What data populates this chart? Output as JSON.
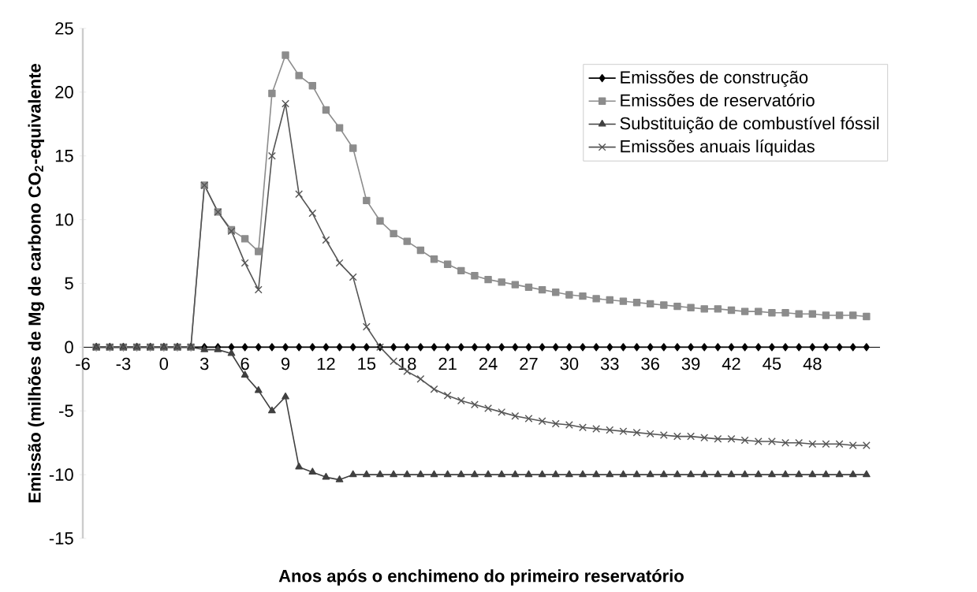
{
  "chart_data": {
    "type": "line",
    "xlabel": "Anos após o enchimeno do primeiro reservatório",
    "ylabel": "Emissão (milhões de Mg de carbono CO$_{2}$-equivalente",
    "x": [
      -5,
      -4,
      -3,
      -2,
      -1,
      0,
      1,
      2,
      3,
      4,
      5,
      6,
      7,
      8,
      9,
      10,
      11,
      12,
      13,
      14,
      15,
      16,
      17,
      18,
      19,
      20,
      21,
      22,
      23,
      24,
      25,
      26,
      27,
      28,
      29,
      30,
      31,
      32,
      33,
      34,
      35,
      36,
      37,
      38,
      39,
      40,
      41,
      42,
      43,
      44,
      45,
      46,
      47,
      48,
      49,
      50,
      51,
      52
    ],
    "xlim": [
      -6,
      53
    ],
    "xticks": [
      -6,
      -3,
      0,
      3,
      6,
      9,
      12,
      15,
      18,
      21,
      24,
      27,
      30,
      33,
      36,
      39,
      42,
      45,
      48
    ],
    "ylim": [
      -15,
      25
    ],
    "yticks": [
      -15,
      -10,
      -5,
      0,
      5,
      10,
      15,
      20,
      25
    ],
    "legend": "top right",
    "grid": false,
    "series": [
      {
        "name": "Emissões de construção",
        "color": "#000000",
        "marker": "diamond",
        "values": [
          0,
          0,
          0,
          0,
          0,
          0,
          0,
          0,
          0,
          0,
          0,
          0,
          0,
          0,
          0,
          0,
          0,
          0,
          0,
          0,
          0,
          0,
          0,
          0,
          0,
          0,
          0,
          0,
          0,
          0,
          0,
          0,
          0,
          0,
          0,
          0,
          0,
          0,
          0,
          0,
          0,
          0,
          0,
          0,
          0,
          0,
          0,
          0,
          0,
          0,
          0,
          0,
          0,
          0,
          0,
          0,
          0,
          0
        ]
      },
      {
        "name": "Emissões de reservatório",
        "color": "#8c8c8c",
        "marker": "square",
        "values": [
          0,
          0,
          0,
          0,
          0,
          0,
          0,
          0,
          12.7,
          10.6,
          9.2,
          8.5,
          7.5,
          19.9,
          22.9,
          21.3,
          20.5,
          18.6,
          17.2,
          15.6,
          11.5,
          9.9,
          8.9,
          8.3,
          7.6,
          6.9,
          6.5,
          6.0,
          5.6,
          5.3,
          5.1,
          4.9,
          4.7,
          4.5,
          4.3,
          4.1,
          4.0,
          3.8,
          3.7,
          3.6,
          3.5,
          3.4,
          3.3,
          3.2,
          3.1,
          3.0,
          3.0,
          2.9,
          2.8,
          2.8,
          2.7,
          2.7,
          2.6,
          2.6,
          2.5,
          2.5,
          2.5,
          2.4
        ]
      },
      {
        "name": "Substituição de combustível fóssil",
        "color": "#404040",
        "marker": "triangle",
        "values": [
          0,
          0,
          0,
          0,
          0,
          0,
          0,
          0,
          -0.2,
          -0.2,
          -0.5,
          -2.2,
          -3.4,
          -5.0,
          -3.9,
          -9.4,
          -9.8,
          -10.2,
          -10.4,
          -10,
          -10,
          -10,
          -10,
          -10,
          -10,
          -10,
          -10,
          -10,
          -10,
          -10,
          -10,
          -10,
          -10,
          -10,
          -10,
          -10,
          -10,
          -10,
          -10,
          -10,
          -10,
          -10,
          -10,
          -10,
          -10,
          -10,
          -10,
          -10,
          -10,
          -10,
          -10,
          -10,
          -10,
          -10,
          -10,
          -10,
          -10,
          -10
        ]
      },
      {
        "name": "Emissões anuais líquidas",
        "color": "#555555",
        "marker": "cross",
        "values": [
          0,
          0,
          0,
          0,
          0,
          0,
          0,
          0,
          12.7,
          10.6,
          9.1,
          6.6,
          4.5,
          15.0,
          19.1,
          12.0,
          10.5,
          8.4,
          6.6,
          5.5,
          1.6,
          0.0,
          -1.1,
          -1.9,
          -2.5,
          -3.3,
          -3.8,
          -4.2,
          -4.5,
          -4.8,
          -5.1,
          -5.4,
          -5.6,
          -5.8,
          -6.0,
          -6.1,
          -6.3,
          -6.4,
          -6.5,
          -6.6,
          -6.7,
          -6.8,
          -6.9,
          -7.0,
          -7.0,
          -7.1,
          -7.2,
          -7.2,
          -7.3,
          -7.4,
          -7.4,
          -7.5,
          -7.5,
          -7.6,
          -7.6,
          -7.6,
          -7.7,
          -7.7
        ]
      }
    ]
  }
}
